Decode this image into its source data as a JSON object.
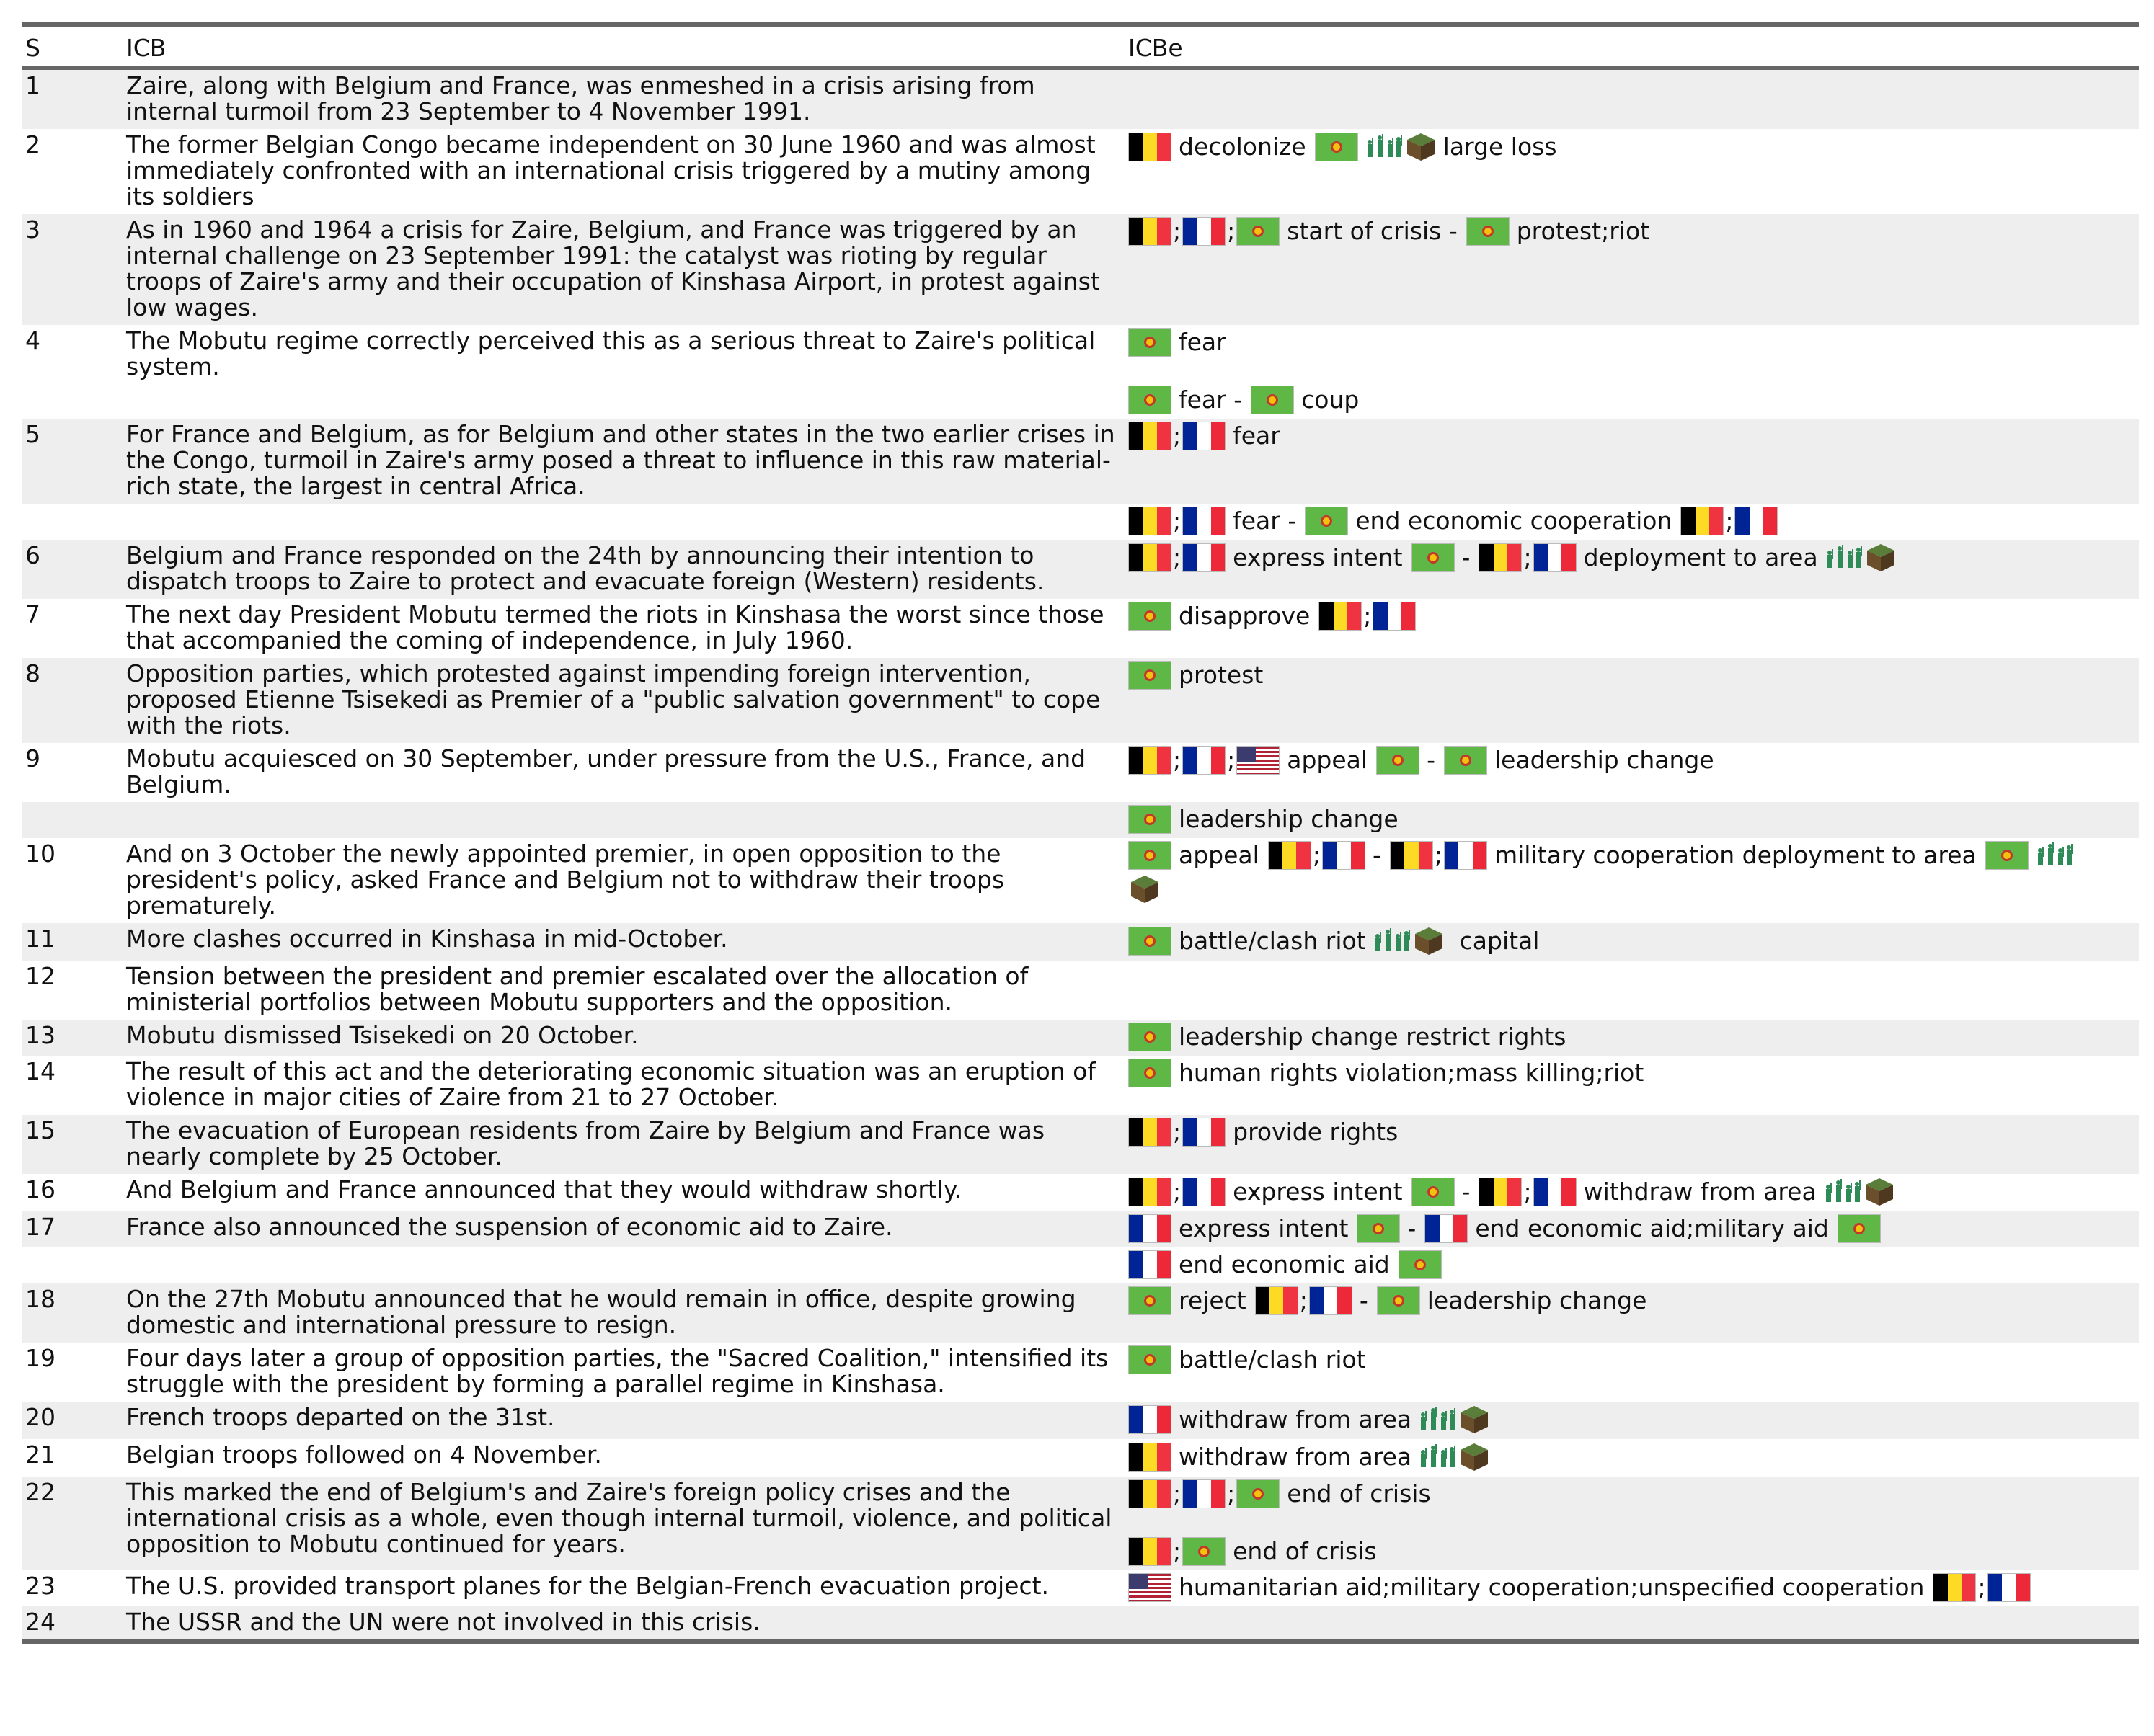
{
  "header": {
    "col_s": "S",
    "col_icb": "ICB",
    "col_icbe": "ICBe"
  },
  "rows": [
    {
      "s": "1",
      "icb": "Zaire, along with Belgium and France, was enmeshed in a crisis arising from internal turmoil from 23 September to 4 November 1991.",
      "icbe": []
    },
    {
      "s": "2",
      "icb": "The former Belgian Congo became independent on 30 June 1960 and was almost immediately confronted with an international crisis triggered by a mutiny among its soldiers",
      "icbe": [
        {
          "segs": [
            {
              "flags": [
                "be"
              ],
              "text": "decolonize"
            },
            {
              "flags": [
                "zr"
              ],
              "icons": [
                "soldiers",
                "land"
              ],
              "text": "large loss"
            }
          ]
        }
      ]
    },
    {
      "s": "3",
      "icb": "As in 1960 and 1964 a crisis for Zaire, Belgium, and France was triggered by an internal challenge on 23 September 1991: the catalyst was rioting by regular troops of Zaire's army and their occupation of Kinshasa Airport, in protest against low wages.",
      "icbe": [
        {
          "segs": [
            {
              "flags": [
                "be",
                "fr",
                "zr"
              ],
              "text": "start of crisis -"
            },
            {
              "flags": [
                "zr"
              ],
              "text": "protest;riot"
            }
          ]
        }
      ]
    },
    {
      "s": "4",
      "icb": "The Mobutu regime correctly perceived this as a serious threat to Zaire's political system.",
      "icbe": [
        {
          "segs": [
            {
              "flags": [
                "zr"
              ],
              "text": "fear"
            }
          ]
        },
        {
          "gap": true,
          "segs": [
            {
              "flags": [
                "zr"
              ],
              "text": "fear -"
            },
            {
              "flags": [
                "zr"
              ],
              "text": "coup"
            }
          ]
        }
      ]
    },
    {
      "s": "5",
      "icb": "For France and Belgium, as for Belgium and other states in the two earlier crises in the Congo, turmoil in Zaire's army posed a threat to influence in this raw material-rich state, the largest in central Africa.",
      "icbe": [
        {
          "segs": [
            {
              "flags": [
                "be",
                "fr"
              ],
              "text": "fear"
            }
          ]
        }
      ]
    },
    {
      "s": "",
      "icb": "",
      "icbe": [
        {
          "segs": [
            {
              "flags": [
                "be",
                "fr"
              ],
              "text": "fear -"
            },
            {
              "flags": [
                "zr"
              ],
              "text": "end economic cooperation"
            },
            {
              "flags": [
                "be",
                "fr"
              ],
              "text": ""
            }
          ]
        }
      ]
    },
    {
      "s": "6",
      "icb": "Belgium and France responded on the 24th by announcing their intention to dispatch troops to Zaire to protect and evacuate foreign (Western) residents.",
      "icbe": [
        {
          "segs": [
            {
              "flags": [
                "be",
                "fr"
              ],
              "text": "express intent"
            },
            {
              "flags": [
                "zr"
              ],
              "text": "-"
            },
            {
              "flags": [
                "be",
                "fr"
              ],
              "text": "deployment to area",
              "icons": [
                "soldiers",
                "land"
              ],
              "icons_after": true
            }
          ]
        }
      ]
    },
    {
      "s": "7",
      "icb": "The next day President Mobutu termed the riots in Kinshasa the worst since those that accompanied the coming of independence, in July 1960.",
      "icbe": [
        {
          "segs": [
            {
              "flags": [
                "zr"
              ],
              "text": "disapprove"
            },
            {
              "flags": [
                "be",
                "fr"
              ],
              "text": ""
            }
          ]
        }
      ]
    },
    {
      "s": "8",
      "icb": "Opposition parties, which protested against impending foreign intervention, proposed Etienne Tsisekedi as Premier of a \"public salvation government\" to cope with the riots.",
      "icbe": [
        {
          "segs": [
            {
              "flags": [
                "zr"
              ],
              "text": "protest"
            }
          ]
        }
      ]
    },
    {
      "s": "9",
      "icb": "Mobutu acquiesced on 30 September, under pressure from the U.S., France, and Belgium.",
      "icbe": [
        {
          "segs": [
            {
              "flags": [
                "be",
                "fr",
                "us"
              ],
              "text": "appeal"
            },
            {
              "flags": [
                "zr"
              ],
              "text": "-"
            },
            {
              "flags": [
                "zr"
              ],
              "text": "leadership change"
            }
          ]
        }
      ]
    },
    {
      "s": "",
      "icb": "",
      "icbe": [
        {
          "segs": [
            {
              "flags": [
                "zr"
              ],
              "text": "leadership change"
            }
          ]
        }
      ]
    },
    {
      "s": "10",
      "icb": "And on 3 October the newly appointed premier, in open opposition to the president's policy, asked France and Belgium not to withdraw their troops prematurely.",
      "icbe": [
        {
          "segs": [
            {
              "flags": [
                "zr"
              ],
              "text": "appeal"
            },
            {
              "flags": [
                "be",
                "fr"
              ],
              "text": "-"
            },
            {
              "flags": [
                "be",
                "fr"
              ],
              "text": "military cooperation deployment to area"
            },
            {
              "flags": [
                "zr"
              ],
              "icons": [
                "soldiers"
              ],
              "text": ""
            }
          ]
        },
        {
          "segs": [
            {
              "flags": [],
              "icons": [
                "land"
              ],
              "text": ""
            }
          ]
        }
      ]
    },
    {
      "s": "11",
      "icb": "More clashes occurred in Kinshasa in mid-October.",
      "icbe": [
        {
          "segs": [
            {
              "flags": [
                "zr"
              ],
              "text": "battle/clash riot",
              "icons": [
                "soldiers",
                "land"
              ],
              "icons_after": true
            },
            {
              "flags": [],
              "text": "capital"
            }
          ]
        }
      ]
    },
    {
      "s": "12",
      "icb": "Tension between the president and premier escalated over the allocation of ministerial portfolios between Mobutu supporters and the opposition.",
      "icbe": []
    },
    {
      "s": "13",
      "icb": "Mobutu dismissed Tsisekedi on 20 October.",
      "icbe": [
        {
          "segs": [
            {
              "flags": [
                "zr"
              ],
              "text": "leadership change restrict rights"
            }
          ]
        }
      ]
    },
    {
      "s": "14",
      "icb": "The result of this act and the deteriorating economic situation was an eruption of violence in major cities of Zaire from 21 to 27 October.",
      "icbe": [
        {
          "segs": [
            {
              "flags": [
                "zr"
              ],
              "text": "human rights violation;mass killing;riot"
            }
          ]
        }
      ]
    },
    {
      "s": "15",
      "icb": "The evacuation of European residents from Zaire by Belgium and France was nearly complete by 25 October.",
      "icbe": [
        {
          "segs": [
            {
              "flags": [
                "be",
                "fr"
              ],
              "text": "provide rights"
            }
          ]
        }
      ]
    },
    {
      "s": "16",
      "icb": "And Belgium and France announced that they would withdraw shortly.",
      "icbe": [
        {
          "segs": [
            {
              "flags": [
                "be",
                "fr"
              ],
              "text": "express intent"
            },
            {
              "flags": [
                "zr"
              ],
              "text": "-"
            },
            {
              "flags": [
                "be",
                "fr"
              ],
              "text": "withdraw from area",
              "icons": [
                "soldiers",
                "land"
              ],
              "icons_after": true
            }
          ]
        }
      ]
    },
    {
      "s": "17",
      "icb": "France also announced the suspension of economic aid to Zaire.",
      "icbe": [
        {
          "segs": [
            {
              "flags": [
                "fr"
              ],
              "text": "express intent"
            },
            {
              "flags": [
                "zr"
              ],
              "text": "-"
            },
            {
              "flags": [
                "fr"
              ],
              "text": "end economic aid;military aid"
            },
            {
              "flags": [
                "zr"
              ],
              "text": ""
            }
          ]
        }
      ]
    },
    {
      "s": "",
      "icb": "",
      "icbe": [
        {
          "segs": [
            {
              "flags": [
                "fr"
              ],
              "text": "end economic aid"
            },
            {
              "flags": [
                "zr"
              ],
              "text": ""
            }
          ]
        }
      ]
    },
    {
      "s": "18",
      "icb": "On the 27th Mobutu announced that he would remain in office, despite growing domestic and international pressure to resign.",
      "icbe": [
        {
          "segs": [
            {
              "flags": [
                "zr"
              ],
              "text": "reject"
            },
            {
              "flags": [
                "be",
                "fr"
              ],
              "text": "-"
            },
            {
              "flags": [
                "zr"
              ],
              "text": "leadership change"
            }
          ]
        }
      ]
    },
    {
      "s": "19",
      "icb": "Four days later a group of opposition parties, the \"Sacred Coalition,\" intensified its struggle with the president by forming a parallel regime in Kinshasa.",
      "icbe": [
        {
          "segs": [
            {
              "flags": [
                "zr"
              ],
              "text": "battle/clash riot"
            }
          ]
        }
      ]
    },
    {
      "s": "20",
      "icb": "French troops departed on the 31st.",
      "icbe": [
        {
          "segs": [
            {
              "flags": [
                "fr"
              ],
              "text": "withdraw from area",
              "icons": [
                "soldiers",
                "land"
              ],
              "icons_after": true
            }
          ]
        }
      ]
    },
    {
      "s": "21",
      "icb": "Belgian troops followed on 4 November.",
      "icbe": [
        {
          "segs": [
            {
              "flags": [
                "be"
              ],
              "text": "withdraw from area",
              "icons": [
                "soldiers",
                "land"
              ],
              "icons_after": true
            }
          ]
        }
      ]
    },
    {
      "s": "22",
      "icb": "This marked the end of Belgium's and Zaire's foreign policy crises and the international crisis as a whole, even though internal turmoil, violence, and political opposition to Mobutu continued for years.",
      "icbe": [
        {
          "segs": [
            {
              "flags": [
                "be",
                "fr",
                "zr"
              ],
              "text": "end of crisis"
            }
          ]
        },
        {
          "gap": true,
          "segs": [
            {
              "flags": [
                "be",
                "zr"
              ],
              "text": "end of crisis"
            }
          ]
        }
      ]
    },
    {
      "s": "23",
      "icb": "The U.S. provided transport planes for the Belgian-French evacuation project.",
      "icbe": [
        {
          "segs": [
            {
              "flags": [
                "us"
              ],
              "text": "humanitarian aid;military cooperation;unspecified cooperation"
            },
            {
              "flags": [
                "be",
                "fr"
              ],
              "text": ""
            }
          ]
        }
      ]
    },
    {
      "s": "24",
      "icb": "The USSR and the UN were not involved in this crisis.",
      "icbe": []
    }
  ],
  "flag_names": {
    "be": "belgium-flag-icon",
    "fr": "france-flag-icon",
    "zr": "zaire-flag-icon",
    "us": "usa-flag-icon"
  },
  "icon_names": {
    "soldiers": "soldiers-icon",
    "land": "land-block-icon"
  },
  "colors": {
    "rule": "#666666",
    "stripe": "#eeeeee"
  }
}
